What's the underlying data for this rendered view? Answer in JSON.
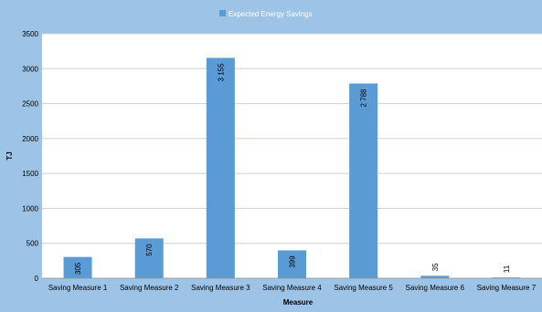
{
  "chart_data": {
    "type": "bar",
    "title": "",
    "legend": {
      "position": "top",
      "entries": [
        "Expected Energy Savings"
      ]
    },
    "xlabel": "Measure",
    "ylabel": "TJ",
    "ylim": [
      0,
      3500
    ],
    "yticks": [
      0,
      500,
      1000,
      1500,
      2000,
      2500,
      3000,
      3500
    ],
    "grid": true,
    "categories": [
      "Saving Measure 1",
      "Saving Measure 2",
      "Saving Measure 3",
      "Saving Measure 4",
      "Saving Measure 5",
      "Saving Measure 6",
      "Saving Measure 7"
    ],
    "series": [
      {
        "name": "Expected Energy Savings",
        "values": [
          305,
          570,
          3155,
          399,
          2788,
          35,
          11
        ],
        "data_labels": [
          "305",
          "570",
          "3 155",
          "399",
          "2 788",
          "35",
          "11"
        ],
        "color": "#5b9bd5"
      }
    ],
    "colors": {
      "background": "#9dc3e6",
      "plot_area": "#ffffff",
      "bar": "#5b9bd5",
      "grid": "#d0d0d0"
    }
  }
}
